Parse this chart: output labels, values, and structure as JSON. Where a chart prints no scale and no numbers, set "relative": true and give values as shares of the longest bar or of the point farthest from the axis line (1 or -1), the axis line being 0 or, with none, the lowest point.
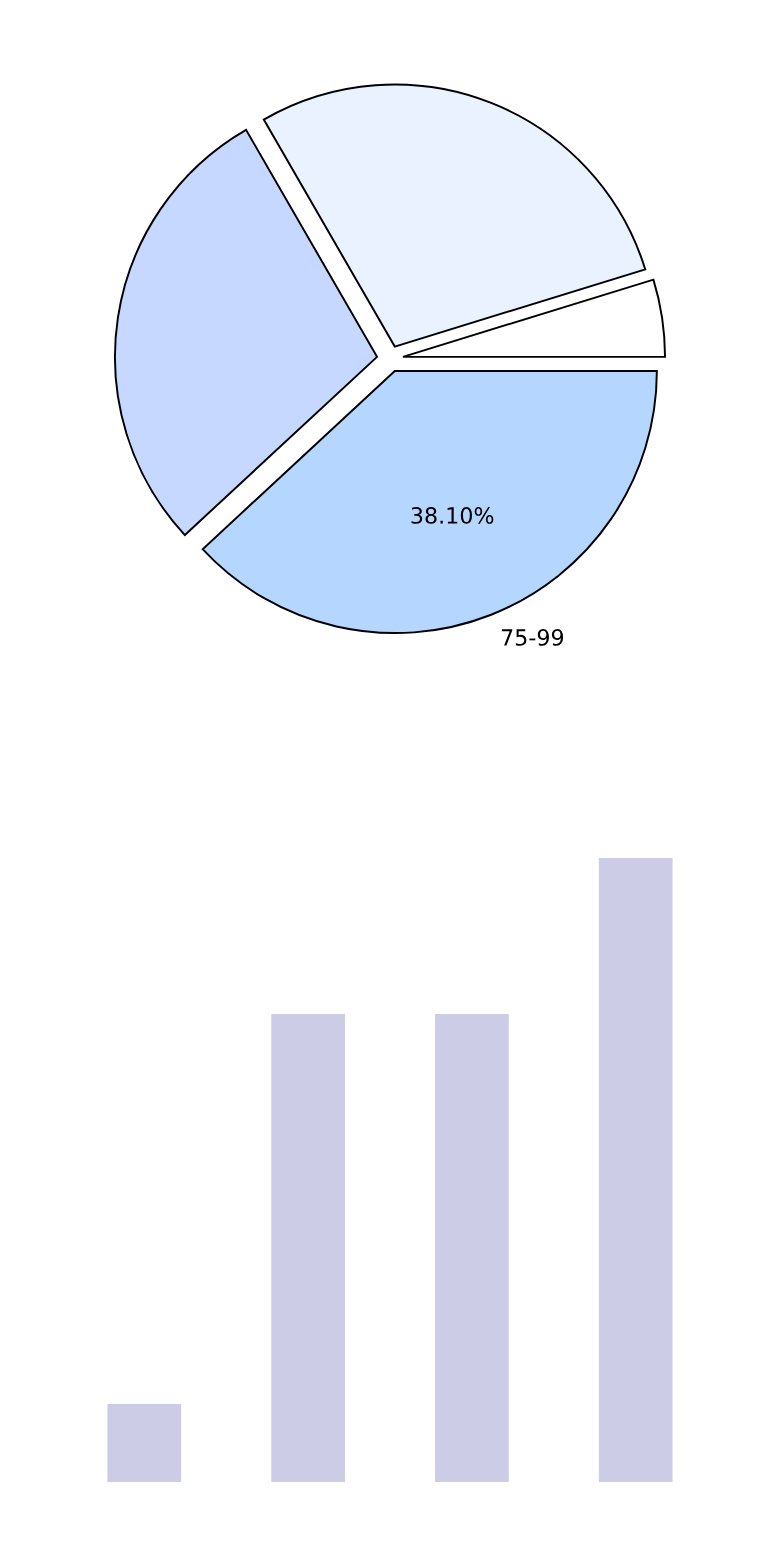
{
  "chart_data": [
    {
      "type": "pie",
      "categories": [
        null,
        null,
        null,
        "75-99"
      ],
      "values": [
        4.76,
        28.57,
        28.57,
        38.1
      ],
      "colors": [
        "#ffffff",
        "#eaf1ff",
        "#c6d8ff",
        "#b5d6ff"
      ],
      "value_labels": [
        null,
        null,
        null,
        "38.10%"
      ]
    },
    {
      "type": "bar",
      "categories": [
        null,
        null,
        null,
        null
      ],
      "relative": true,
      "values": [
        0.125,
        0.75,
        0.75,
        1
      ],
      "color": "#cccce6"
    }
  ]
}
